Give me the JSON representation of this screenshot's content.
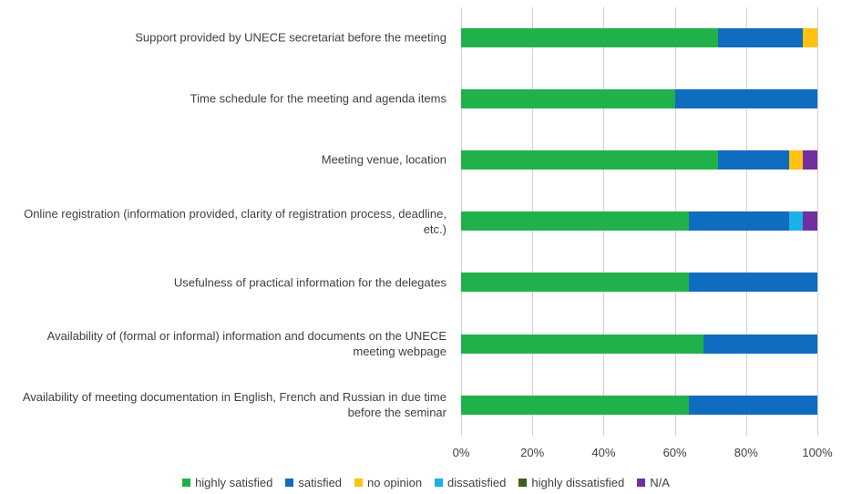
{
  "chart_data": {
    "type": "stacked-bar-horizontal",
    "categories": [
      "Support provided by UNECE secretariat before the meeting",
      "Time schedule for the meeting and agenda items",
      "Meeting venue, location",
      "Online registration (information provided, clarity of registration process, deadline, etc.)",
      "Usefulness of practical information for the delegates",
      "Availability of (formal or informal) information and documents on the UNECE meeting webpage",
      "Availability of meeting documentation in English, French and Russian in due time before the seminar"
    ],
    "series": [
      {
        "name": "highly satisfied",
        "color": "#21b14b",
        "values": [
          72,
          60,
          72,
          64,
          64,
          68,
          64
        ]
      },
      {
        "name": "satisfied",
        "color": "#0f6cbf",
        "values": [
          24,
          40,
          20,
          28,
          36,
          32,
          36
        ]
      },
      {
        "name": "no opinion",
        "color": "#ffc20e",
        "values": [
          4,
          0,
          4,
          0,
          0,
          0,
          0
        ]
      },
      {
        "name": "dissatisfied",
        "color": "#1ab0e8",
        "values": [
          0,
          0,
          0,
          4,
          0,
          0,
          0
        ]
      },
      {
        "name": "highly dissatisfied",
        "color": "#3d5f1e",
        "values": [
          0,
          0,
          0,
          0,
          0,
          0,
          0
        ]
      },
      {
        "name": "N/A",
        "color": "#7030a0",
        "values": [
          0,
          0,
          4,
          4,
          0,
          0,
          0
        ]
      }
    ],
    "xlim": [
      0,
      100
    ],
    "xticks": [
      {
        "value": 0,
        "label": "0%"
      },
      {
        "value": 20,
        "label": "20%"
      },
      {
        "value": 40,
        "label": "40%"
      },
      {
        "value": 60,
        "label": "60%"
      },
      {
        "value": 80,
        "label": "80%"
      },
      {
        "value": 100,
        "label": "100%"
      }
    ],
    "grid": true,
    "legend": "bottom"
  }
}
